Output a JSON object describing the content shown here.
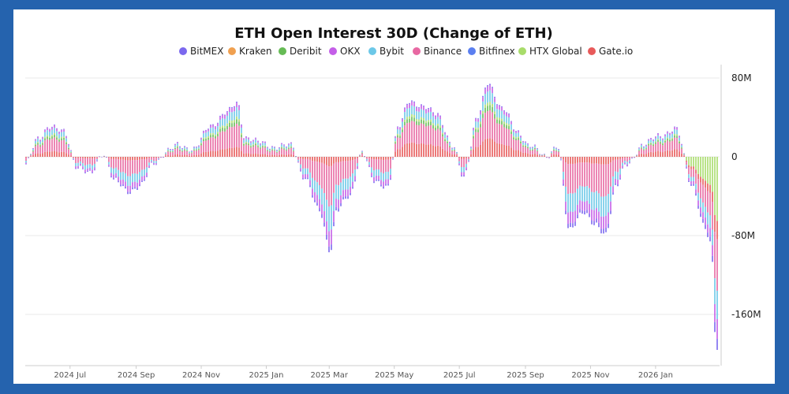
{
  "chart_data": {
    "type": "bar",
    "stacked": true,
    "title": "ETH Open Interest 30D (Change of ETH)",
    "xlabel": "",
    "ylabel": "",
    "ylim": [
      -210,
      80
    ],
    "x_range": [
      "2024-05-20",
      "2026-03-02"
    ],
    "y_ticks": [
      {
        "value": 80,
        "label": "80M"
      },
      {
        "value": 0,
        "label": "0"
      },
      {
        "value": -80,
        "label": "-80M"
      },
      {
        "value": -160,
        "label": "-160M"
      }
    ],
    "x_ticks": [
      {
        "date": "2024-07-01",
        "label": "2024 Jul"
      },
      {
        "date": "2024-09-01",
        "label": "2024 Sep"
      },
      {
        "date": "2024-11-01",
        "label": "2024 Nov"
      },
      {
        "date": "2025-01-01",
        "label": "2025 Jan"
      },
      {
        "date": "2025-03-01",
        "label": "2025 Mar"
      },
      {
        "date": "2025-05-01",
        "label": "2025 May"
      },
      {
        "date": "2025-07-01",
        "label": "2025 Jul"
      },
      {
        "date": "2025-09-01",
        "label": "2025 Sep"
      },
      {
        "date": "2025-11-01",
        "label": "2025 Nov"
      },
      {
        "date": "2026-01-01",
        "label": "2026 Jan"
      }
    ],
    "legend": {
      "position": "top"
    },
    "grid": {
      "horizontal": true,
      "vertical": false
    },
    "series": [
      {
        "name": "BitMEX",
        "color": "#7b68ee"
      },
      {
        "name": "Kraken",
        "color": "#f0a050"
      },
      {
        "name": "Deribit",
        "color": "#66bb55"
      },
      {
        "name": "OKX",
        "color": "#c45ee8"
      },
      {
        "name": "Bybit",
        "color": "#6cc8e8"
      },
      {
        "name": "Binance",
        "color": "#e868a2"
      },
      {
        "name": "Bitfinex",
        "color": "#5b7ff0"
      },
      {
        "name": "HTX Global",
        "color": "#a8dc6a"
      },
      {
        "name": "Gate.io",
        "color": "#e85a5a"
      }
    ],
    "totals": [
      {
        "date": "2024-05-20",
        "value": -8
      },
      {
        "date": "2024-06-01",
        "value": 18
      },
      {
        "date": "2024-06-12",
        "value": 32
      },
      {
        "date": "2024-06-25",
        "value": 25
      },
      {
        "date": "2024-07-08",
        "value": -10
      },
      {
        "date": "2024-07-20",
        "value": -18
      },
      {
        "date": "2024-08-01",
        "value": 4
      },
      {
        "date": "2024-08-12",
        "value": -25
      },
      {
        "date": "2024-08-25",
        "value": -35
      },
      {
        "date": "2024-09-05",
        "value": -30
      },
      {
        "date": "2024-09-18",
        "value": -6
      },
      {
        "date": "2024-10-01",
        "value": 6
      },
      {
        "date": "2024-10-10",
        "value": 12
      },
      {
        "date": "2024-10-25",
        "value": 8
      },
      {
        "date": "2024-11-10",
        "value": 32
      },
      {
        "date": "2024-11-25",
        "value": 45
      },
      {
        "date": "2024-12-05",
        "value": 55
      },
      {
        "date": "2024-12-12",
        "value": 20
      },
      {
        "date": "2024-12-25",
        "value": 15
      },
      {
        "date": "2025-01-10",
        "value": 10
      },
      {
        "date": "2025-01-25",
        "value": 12
      },
      {
        "date": "2025-02-05",
        "value": -20
      },
      {
        "date": "2025-02-20",
        "value": -55
      },
      {
        "date": "2025-03-02",
        "value": -95
      },
      {
        "date": "2025-03-08",
        "value": -55
      },
      {
        "date": "2025-03-20",
        "value": -40
      },
      {
        "date": "2025-04-01",
        "value": 5
      },
      {
        "date": "2025-04-12",
        "value": -25
      },
      {
        "date": "2025-04-25",
        "value": -30
      },
      {
        "date": "2025-05-05",
        "value": 30
      },
      {
        "date": "2025-05-15",
        "value": 58
      },
      {
        "date": "2025-05-28",
        "value": 50
      },
      {
        "date": "2025-06-10",
        "value": 45
      },
      {
        "date": "2025-06-25",
        "value": 10
      },
      {
        "date": "2025-07-05",
        "value": -20
      },
      {
        "date": "2025-07-18",
        "value": 40
      },
      {
        "date": "2025-07-28",
        "value": 75
      },
      {
        "date": "2025-08-10",
        "value": 50
      },
      {
        "date": "2025-08-25",
        "value": 25
      },
      {
        "date": "2025-09-05",
        "value": 12
      },
      {
        "date": "2025-09-20",
        "value": 0
      },
      {
        "date": "2025-10-01",
        "value": 12
      },
      {
        "date": "2025-10-12",
        "value": -75
      },
      {
        "date": "2025-10-25",
        "value": -55
      },
      {
        "date": "2025-11-05",
        "value": -70
      },
      {
        "date": "2025-11-15",
        "value": -78
      },
      {
        "date": "2025-11-25",
        "value": -30
      },
      {
        "date": "2025-12-05",
        "value": -8
      },
      {
        "date": "2025-12-20",
        "value": 12
      },
      {
        "date": "2026-01-05",
        "value": 22
      },
      {
        "date": "2026-01-20",
        "value": 28
      },
      {
        "date": "2026-02-05",
        "value": -30
      },
      {
        "date": "2026-02-15",
        "value": -70
      },
      {
        "date": "2026-02-22",
        "value": -90
      },
      {
        "date": "2026-02-27",
        "value": -195
      }
    ]
  }
}
